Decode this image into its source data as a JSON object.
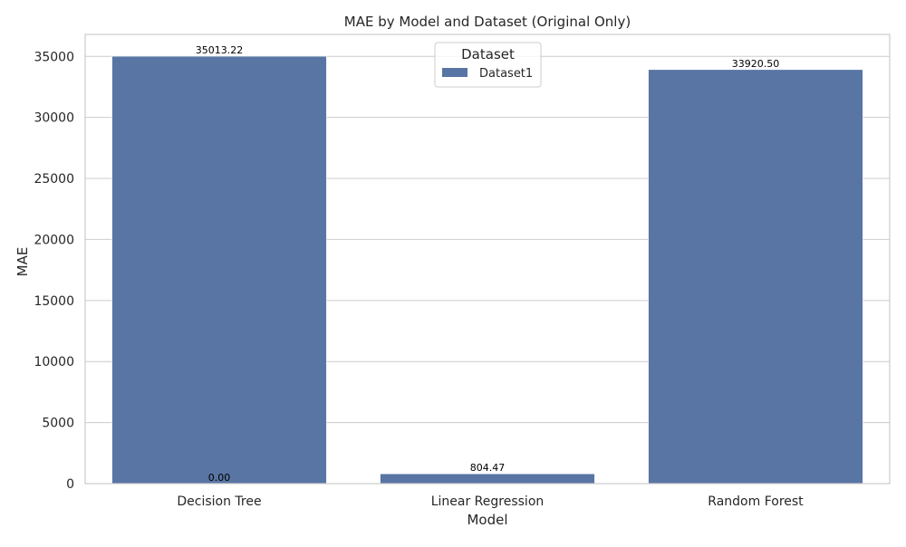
{
  "chart_data": {
    "type": "bar",
    "title": "MAE by Model and Dataset (Original Only)",
    "xlabel": "Model",
    "ylabel": "MAE",
    "categories": [
      "Decision Tree",
      "Linear Regression",
      "Random Forest"
    ],
    "series": [
      {
        "name": "Dataset1",
        "values": [
          35013.22,
          804.47,
          33920.5
        ],
        "labels": [
          "35013.22",
          "804.47",
          "33920.50"
        ]
      }
    ],
    "extra_labels": [
      {
        "category": "Decision Tree",
        "value": 0,
        "text": "0.00"
      }
    ],
    "ylim": [
      0,
      36800
    ],
    "yticks": [
      0,
      5000,
      10000,
      15000,
      20000,
      25000,
      30000,
      35000
    ],
    "ytick_labels": [
      "0",
      "5000",
      "10000",
      "15000",
      "20000",
      "25000",
      "30000",
      "35000"
    ],
    "grid": "y",
    "legend": {
      "title": "Dataset",
      "position": "upper-center",
      "entries": [
        "Dataset1"
      ]
    },
    "colors": {
      "bar": "#5975a4",
      "grid": "#cccccc",
      "frame": "#cccccc",
      "label": "#000000",
      "text": "#262626"
    }
  }
}
